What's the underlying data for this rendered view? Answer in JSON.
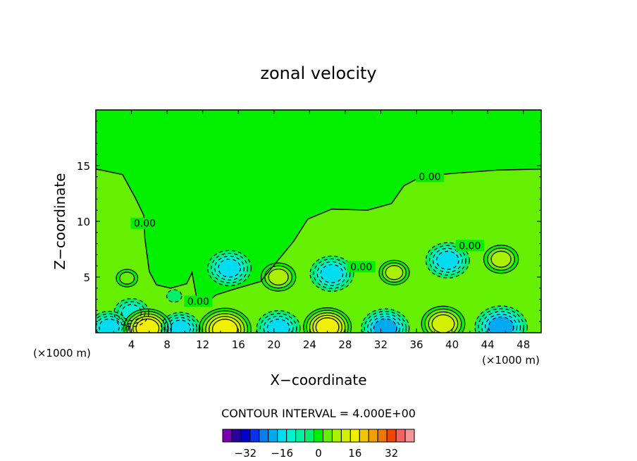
{
  "chart_data": {
    "type": "contour",
    "title": "zonal velocity",
    "xlabel": "X−coordinate",
    "ylabel": "Z−coordinate",
    "x_unit": "(×1000 m)",
    "x_ticks": [
      "4",
      "8",
      "12",
      "16",
      "20",
      "24",
      "28",
      "32",
      "36",
      "40",
      "44",
      "48"
    ],
    "y_ticks": [
      "5",
      "10",
      "15"
    ],
    "xlim": [
      0,
      50
    ],
    "ylim": [
      0,
      20
    ],
    "contour_interval_text": "CONTOUR INTERVAL = 4.000E+00",
    "contour_labels": [
      {
        "text": "0.00",
        "x": 37.5,
        "y": 13.9
      },
      {
        "text": "0.00",
        "x": 5.5,
        "y": 9.7
      },
      {
        "text": "0.00",
        "x": 11.5,
        "y": 2.7
      },
      {
        "text": "0.00",
        "x": 29.8,
        "y": 5.8
      },
      {
        "text": "0.00",
        "x": 42.0,
        "y": 7.7
      }
    ],
    "extrema": [
      {
        "kind": "min",
        "x": 15.0,
        "y": 5.8,
        "value": -16
      },
      {
        "kind": "max",
        "x": 20.5,
        "y": 5.0,
        "value": 12
      },
      {
        "kind": "min",
        "x": 26.5,
        "y": 5.3,
        "value": -16
      },
      {
        "kind": "max",
        "x": 33.5,
        "y": 5.4,
        "value": 10
      },
      {
        "kind": "min",
        "x": 39.5,
        "y": 6.5,
        "value": -16
      },
      {
        "kind": "max",
        "x": 45.5,
        "y": 6.6,
        "value": 12
      },
      {
        "kind": "max",
        "x": 3.5,
        "y": 4.9,
        "value": 6
      },
      {
        "kind": "min",
        "x": 8.8,
        "y": 3.3,
        "value": -3
      },
      {
        "kind": "min",
        "x": 4.0,
        "y": 1.8,
        "value": -12
      },
      {
        "kind": "min",
        "x": 1.5,
        "y": 0.5,
        "value": -14
      },
      {
        "kind": "max",
        "x": 5.8,
        "y": 0.4,
        "value": 18
      },
      {
        "kind": "min",
        "x": 9.5,
        "y": 0.4,
        "value": -14
      },
      {
        "kind": "max",
        "x": 14.5,
        "y": 0.3,
        "value": 20
      },
      {
        "kind": "min",
        "x": 20.5,
        "y": 0.4,
        "value": -16
      },
      {
        "kind": "max",
        "x": 26.0,
        "y": 0.5,
        "value": 18
      },
      {
        "kind": "min",
        "x": 32.5,
        "y": 0.4,
        "value": -18
      },
      {
        "kind": "max",
        "x": 39.0,
        "y": 0.8,
        "value": 16
      },
      {
        "kind": "min",
        "x": 45.5,
        "y": 0.5,
        "value": -20
      }
    ],
    "colorbar": {
      "tick_labels": [
        "−32",
        "−16",
        "0",
        "16",
        "32"
      ],
      "tick_values": [
        -32,
        -16,
        0,
        16,
        32
      ],
      "levels": [
        -40,
        -36,
        -32,
        -28,
        -24,
        -20,
        -16,
        -12,
        -8,
        -4,
        0,
        4,
        8,
        12,
        16,
        20,
        24,
        28,
        32,
        36,
        40
      ],
      "colors": [
        "#7a00b4",
        "#28009c",
        "#0000d2",
        "#0a32f0",
        "#0a7ef0",
        "#00aaf0",
        "#00dcf0",
        "#00f0d2",
        "#00f0a0",
        "#00f06e",
        "#00f000",
        "#64f000",
        "#aaf000",
        "#d2f000",
        "#f0f000",
        "#f0c800",
        "#f0a000",
        "#f07800",
        "#f04600",
        "#f06464",
        "#f09696"
      ]
    }
  }
}
